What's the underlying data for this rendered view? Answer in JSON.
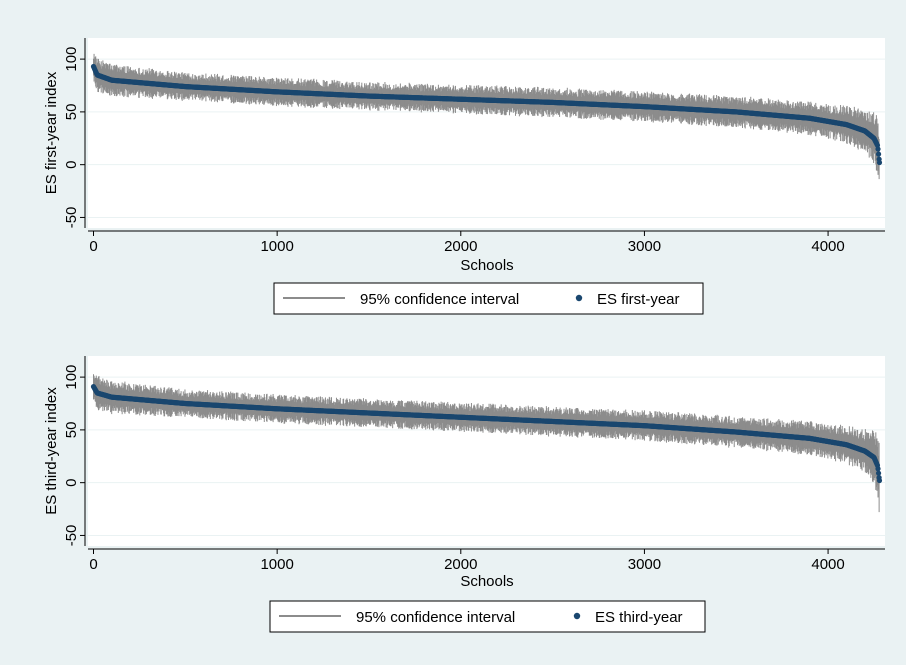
{
  "colors": {
    "background": "#eaf2f3",
    "plot_area": "#ffffff",
    "gridline": "#eaf2f3",
    "ci": "#8c8c8c",
    "estimate": "#1a476f"
  },
  "chart_data": [
    {
      "type": "scatter",
      "xlabel": "Schools",
      "ylabel": "ES first-year index",
      "xlim": [
        -30,
        4310
      ],
      "ylim": [
        -60,
        120
      ],
      "xticks": [
        0,
        1000,
        2000,
        3000,
        4000
      ],
      "yticks": [
        -50,
        0,
        50,
        100
      ],
      "grid": true,
      "legend": {
        "position": "bottom-center",
        "ci_label": "95% confidence interval",
        "series_label": "ES first-year"
      },
      "series": [
        {
          "name": "ES first-year",
          "kind": "ranked-estimates",
          "n": 4280,
          "x": [
            0,
            20,
            100,
            500,
            1000,
            1500,
            2000,
            2500,
            3000,
            3500,
            3900,
            4100,
            4200,
            4250,
            4270,
            4280
          ],
          "y": [
            93,
            85,
            80,
            74,
            69,
            65,
            62,
            59,
            55,
            50,
            44,
            38,
            32,
            25,
            18,
            2
          ]
        },
        {
          "name": "95% confidence interval",
          "kind": "interval-halfwidth",
          "x": [
            0,
            500,
            2000,
            3500,
            4000,
            4200,
            4270,
            4280
          ],
          "halfwidth": [
            12,
            10,
            10,
            11,
            12,
            15,
            22,
            25
          ]
        }
      ]
    },
    {
      "type": "scatter",
      "xlabel": "Schools",
      "ylabel": "ES third-year index",
      "xlim": [
        -30,
        4310
      ],
      "ylim": [
        -60,
        120
      ],
      "xticks": [
        0,
        1000,
        2000,
        3000,
        4000
      ],
      "yticks": [
        -50,
        0,
        50,
        100
      ],
      "grid": true,
      "legend": {
        "position": "bottom-center",
        "ci_label": "95% confidence interval",
        "series_label": "ES third-year"
      },
      "series": [
        {
          "name": "ES third-year",
          "kind": "ranked-estimates",
          "n": 4280,
          "x": [
            0,
            20,
            100,
            500,
            1000,
            1500,
            2000,
            2500,
            3000,
            3500,
            3900,
            4100,
            4200,
            4250,
            4270,
            4280
          ],
          "y": [
            91,
            85,
            81,
            75,
            70,
            66,
            62,
            58,
            54,
            48,
            42,
            36,
            30,
            24,
            16,
            2
          ]
        },
        {
          "name": "95% confidence interval",
          "kind": "interval-halfwidth",
          "x": [
            0,
            500,
            2000,
            3500,
            4000,
            4200,
            4270,
            4280
          ],
          "halfwidth": [
            12,
            10,
            10,
            11,
            12,
            15,
            22,
            25
          ]
        }
      ]
    }
  ]
}
